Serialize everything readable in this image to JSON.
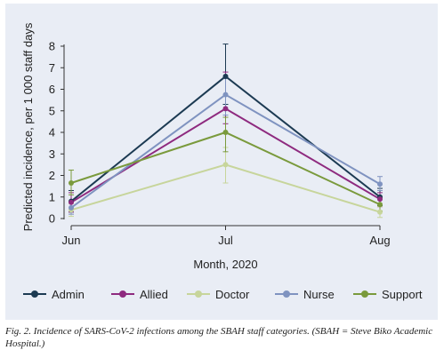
{
  "chart_data": {
    "type": "line",
    "categories": [
      "Jun",
      "Jul",
      "Aug"
    ],
    "xlabel": "Month, 2020",
    "ylabel": "Predicted incidence, per 1 000 staff days",
    "ylim": [
      0,
      8
    ],
    "yticks": [
      0,
      1,
      2,
      3,
      4,
      5,
      6,
      7,
      8
    ],
    "grid": false,
    "legend_position": "bottom",
    "series": [
      {
        "name": "Admin",
        "color": "#1c3a52",
        "values": [
          0.8,
          6.6,
          1.0
        ],
        "err_low": [
          0.3,
          5.3,
          0.6
        ],
        "err_high": [
          1.3,
          8.1,
          1.4
        ]
      },
      {
        "name": "Allied",
        "color": "#8e2a7f",
        "values": [
          0.75,
          5.1,
          0.9
        ],
        "err_low": [
          0.3,
          4.4,
          0.55
        ],
        "err_high": [
          1.2,
          6.8,
          1.2
        ]
      },
      {
        "name": "Doctor",
        "color": "#c7d59b",
        "values": [
          0.4,
          2.5,
          0.3
        ],
        "err_low": [
          0.1,
          1.65,
          0.05
        ],
        "err_high": [
          0.7,
          3.3,
          0.55
        ]
      },
      {
        "name": "Nurse",
        "color": "#7f93c0",
        "values": [
          0.5,
          5.75,
          1.6
        ],
        "err_low": [
          0.2,
          4.8,
          1.3
        ],
        "err_high": [
          0.8,
          6.5,
          1.95
        ]
      },
      {
        "name": "Support",
        "color": "#7a9a3c",
        "values": [
          1.65,
          4.0,
          0.65
        ],
        "err_low": [
          1.1,
          3.1,
          0.35
        ],
        "err_high": [
          2.25,
          4.7,
          0.95
        ]
      }
    ]
  },
  "caption": "Fig. 2. Incidence of SARS-CoV-2 infections among the SBAH staff categories. (SBAH = Steve Biko Academic Hospital.)"
}
